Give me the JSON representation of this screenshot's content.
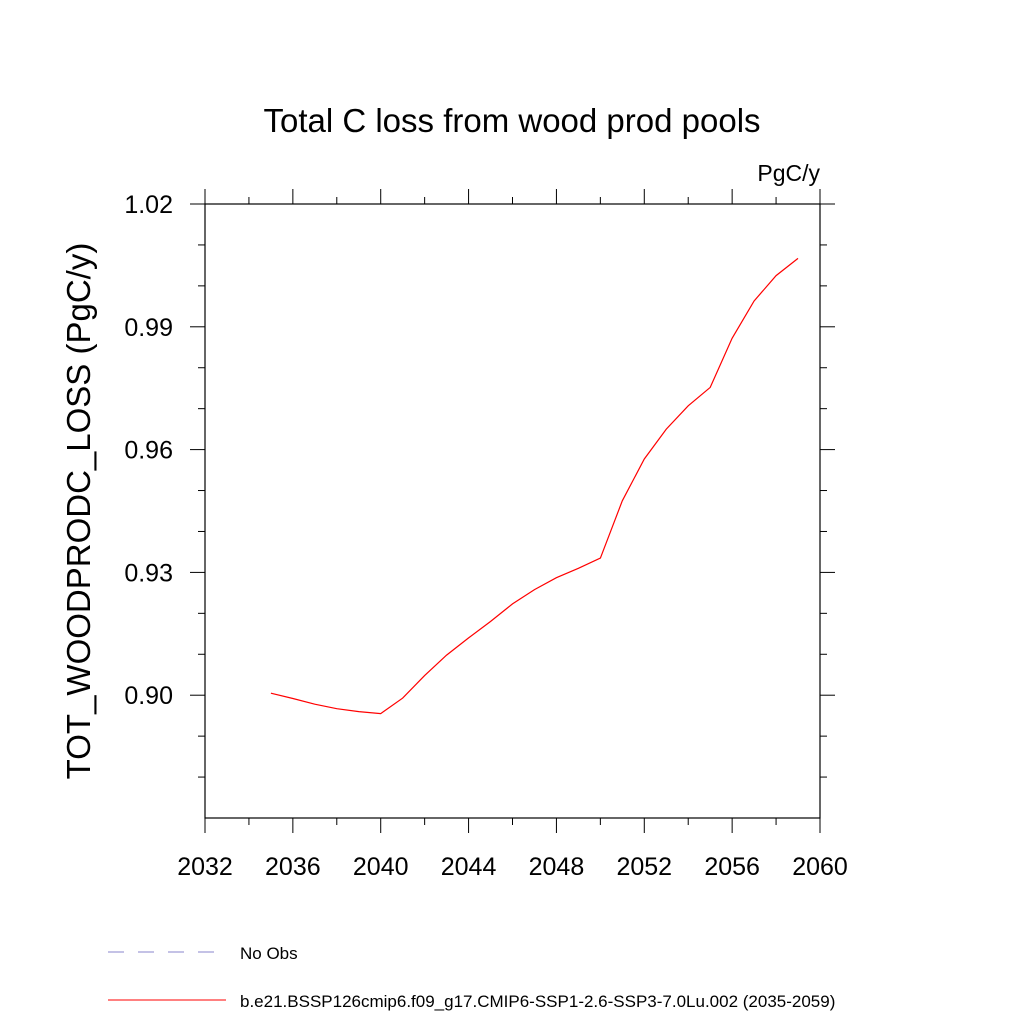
{
  "chart_data": {
    "type": "line",
    "title": "Total C loss from wood prod pools",
    "units_label": "PgC/y",
    "ylabel": "TOT_WOODPRODC_LOSS  (PgC/y)",
    "xlabel": "",
    "xlim": [
      2032,
      2060
    ],
    "ylim": [
      0.87,
      1.02
    ],
    "x_ticks": [
      2032,
      2036,
      2040,
      2044,
      2048,
      2052,
      2056,
      2060
    ],
    "x_minor_step": 2,
    "y_ticks": [
      0.9,
      0.93,
      0.96,
      0.99,
      1.02
    ],
    "y_tick_labels": [
      "0.90",
      "0.93",
      "0.96",
      "0.99",
      "1.02"
    ],
    "y_minor_step": 0.01,
    "grid": false,
    "legend_position": "bottom-left",
    "series": [
      {
        "name": "b.e21.BSSP126cmip6.f09_g17.CMIP6-SSP1-2.6-SSP3-7.0Lu.002 (2035-2059)",
        "color": "#ff0000",
        "dash": "solid",
        "x": [
          2035,
          2036,
          2037,
          2038,
          2039,
          2040,
          2041,
          2042,
          2043,
          2044,
          2045,
          2046,
          2047,
          2048,
          2049,
          2050,
          2051,
          2052,
          2053,
          2054,
          2055,
          2056,
          2057,
          2058,
          2059
        ],
        "y": [
          0.9005,
          0.8992,
          0.8978,
          0.8967,
          0.896,
          0.8955,
          0.8993,
          0.9048,
          0.9098,
          0.914,
          0.918,
          0.9223,
          0.9258,
          0.9287,
          0.931,
          0.9335,
          0.9475,
          0.9577,
          0.965,
          0.9707,
          0.9752,
          0.9872,
          0.9963,
          1.0025,
          1.0067
        ]
      }
    ],
    "legend": [
      {
        "label": "No Obs",
        "color": "#8a84cc",
        "dash": "dashed"
      },
      {
        "label": "b.e21.BSSP126cmip6.f09_g17.CMIP6-SSP1-2.6-SSP3-7.0Lu.002 (2035-2059)",
        "color": "#ff0000",
        "dash": "solid"
      }
    ]
  }
}
